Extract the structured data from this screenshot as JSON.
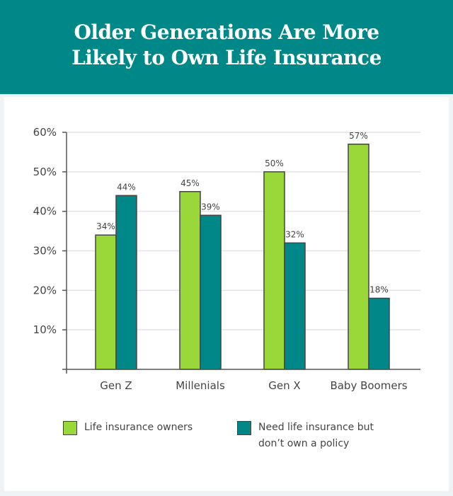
{
  "title": {
    "line1": "Older Generations Are More",
    "line2": "Likely to Own Life Insurance"
  },
  "colors": {
    "header": "#008888",
    "owners": "#9ad83a",
    "need": "#008888",
    "axis": "#555555",
    "grid": "#e4e4e4"
  },
  "chart_data": {
    "type": "bar",
    "title": "Older Generations Are More Likely to Own Life Insurance",
    "xlabel": "",
    "ylabel": "",
    "ylim": [
      0,
      60
    ],
    "yticks": [
      10,
      20,
      30,
      40,
      50,
      60
    ],
    "ytick_labels": [
      "10%",
      "20%",
      "30%",
      "40%",
      "50%",
      "60%"
    ],
    "grid": true,
    "legend_position": "bottom",
    "categories": [
      "Gen Z",
      "Millenials",
      "Gen X",
      "Baby Boomers"
    ],
    "series": [
      {
        "name": "Life insurance owners",
        "values": [
          34,
          45,
          50,
          57
        ],
        "labels": [
          "34%",
          "45%",
          "50%",
          "57%"
        ]
      },
      {
        "name": "Need life insurance but don’t own a policy",
        "values": [
          44,
          39,
          32,
          18
        ],
        "labels": [
          "44%",
          "39%",
          "32%",
          "18%"
        ]
      }
    ]
  },
  "legend": {
    "owners_label": "Life insurance owners",
    "need_label_line1": "Need life insurance but",
    "need_label_line2": "don’t own a policy"
  }
}
